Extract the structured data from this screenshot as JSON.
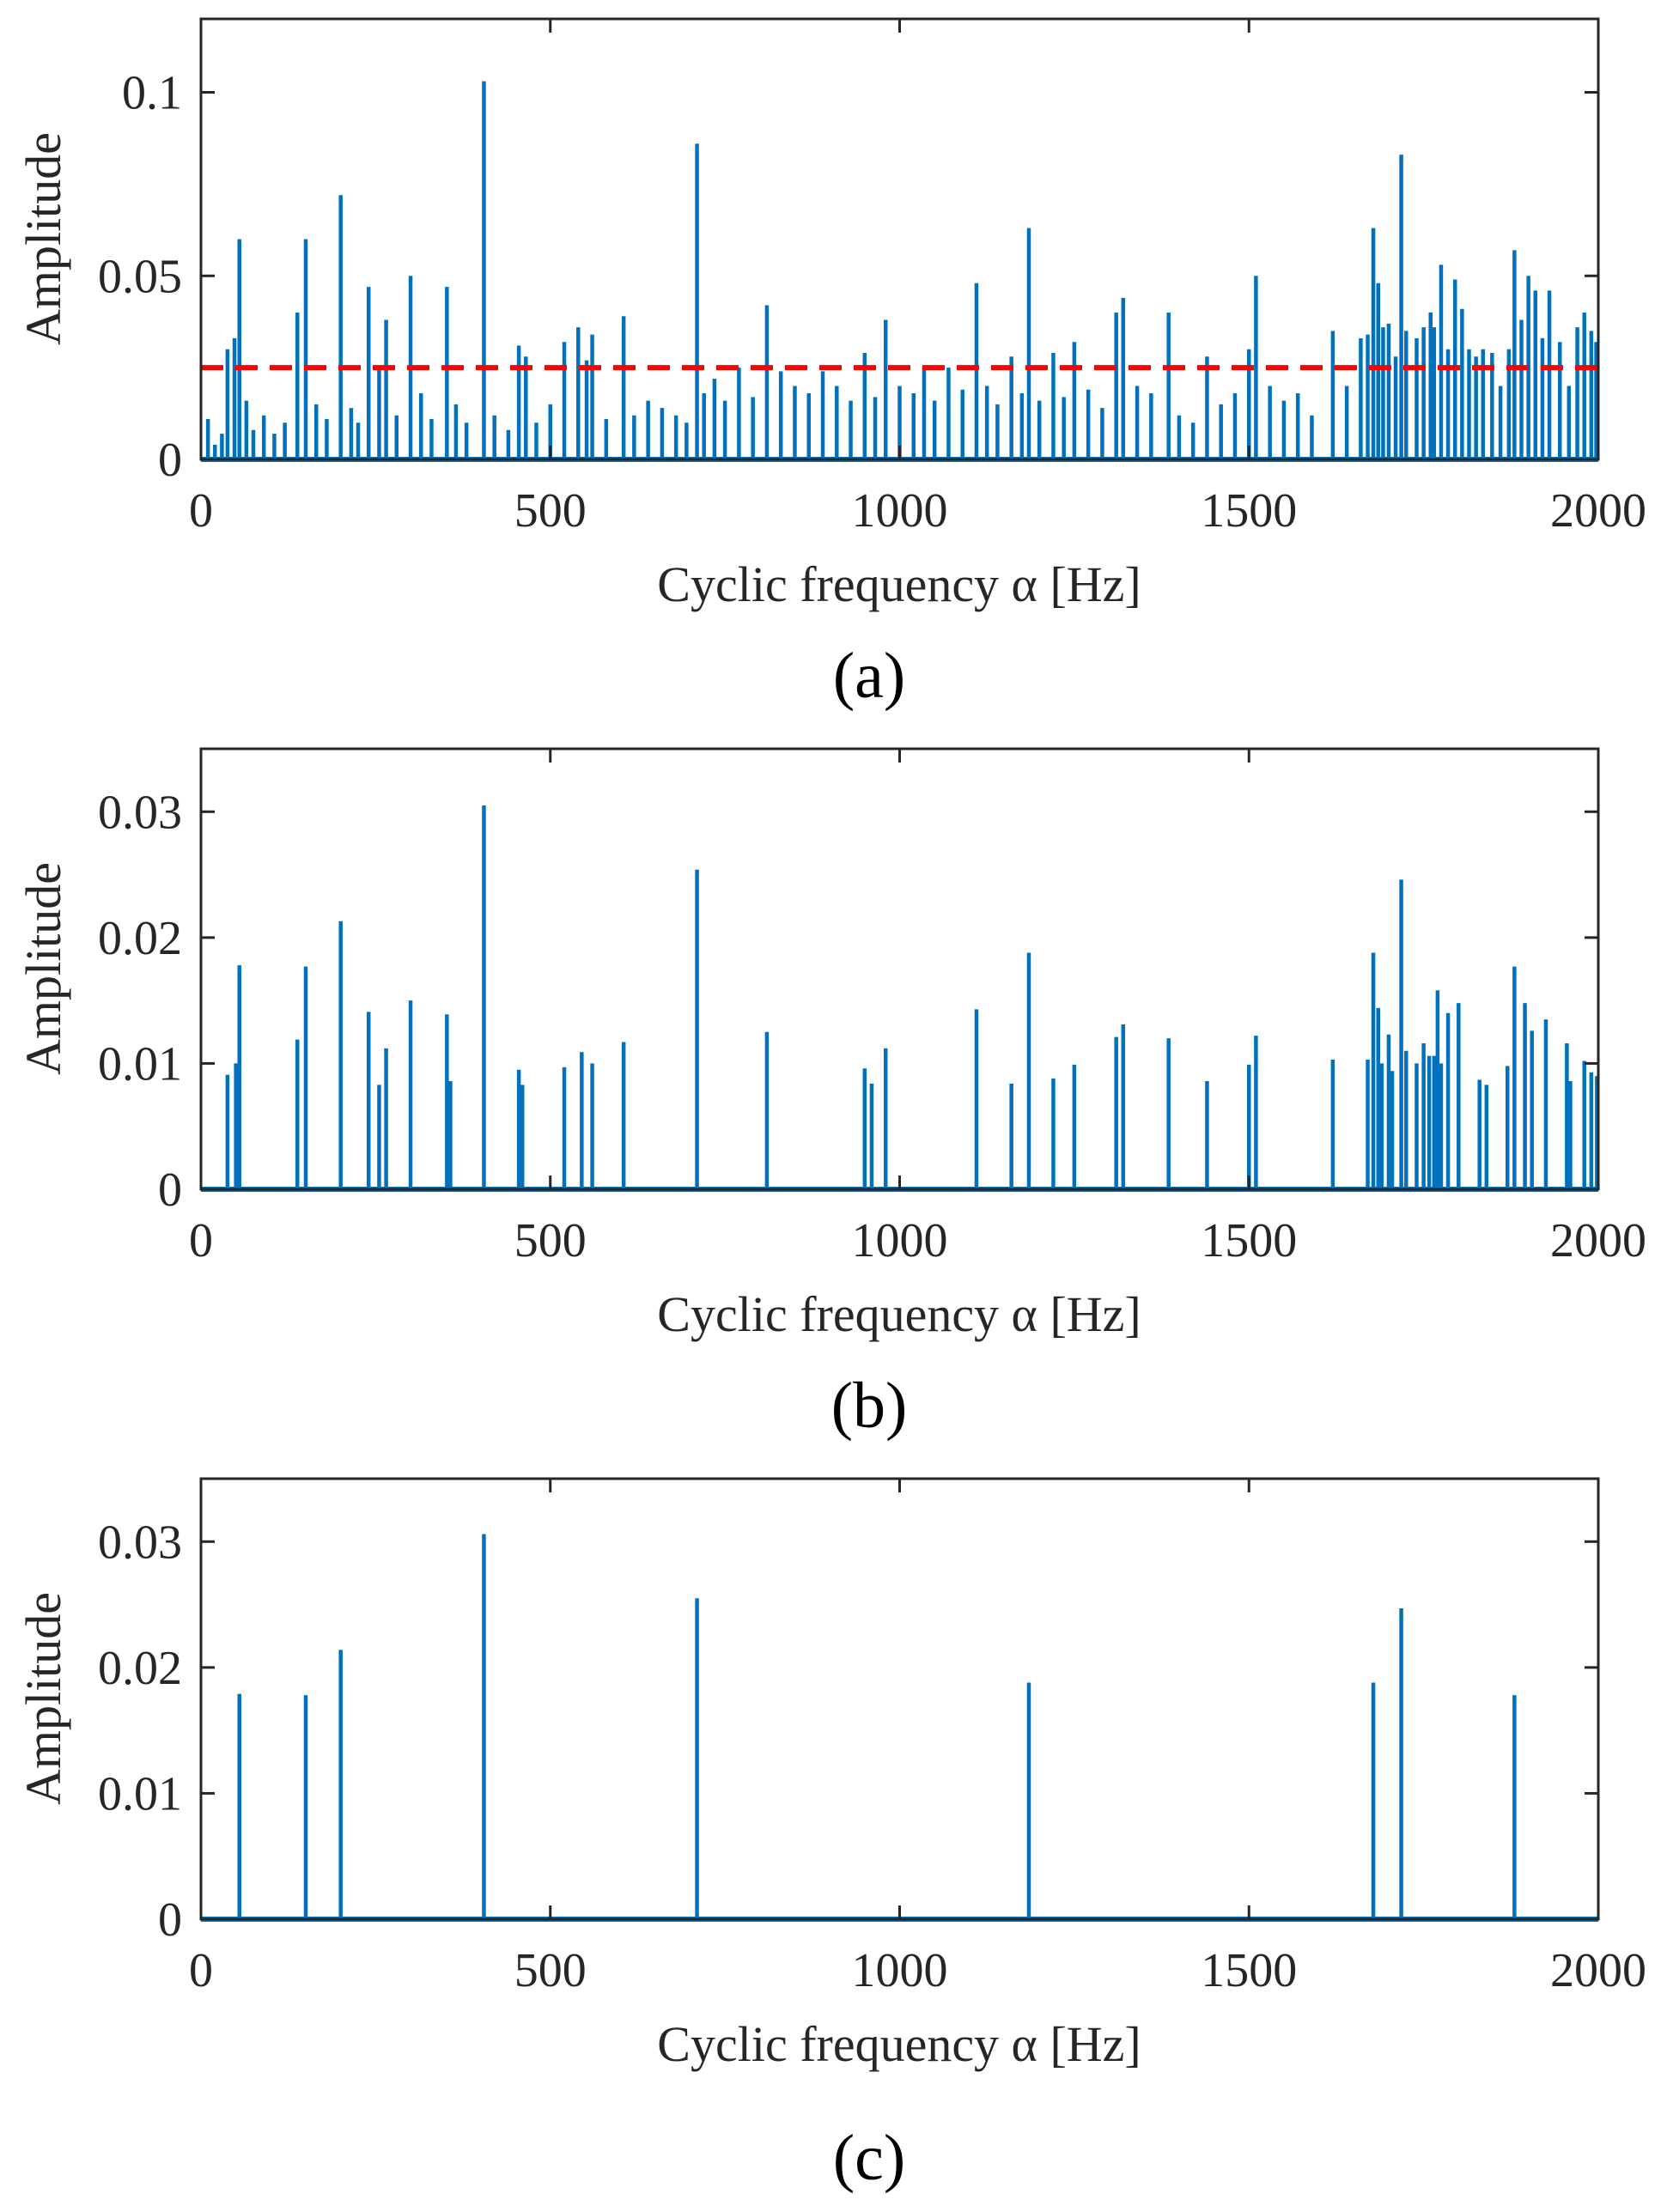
{
  "colors": {
    "series": "#0072BD",
    "threshold": "#FF0000",
    "axis": "#262626"
  },
  "chart_data": [
    {
      "id": "a",
      "type": "line",
      "panel_label": "(a)",
      "title": "",
      "xlabel": "Cyclic frequency α [Hz]",
      "ylabel": "Amplitude",
      "xlim": [
        0,
        2000
      ],
      "ylim": [
        0,
        0.12
      ],
      "xticks": [
        0,
        500,
        1000,
        1500,
        2000
      ],
      "xtick_labels": [
        "0",
        "500",
        "1000",
        "1500",
        "2000"
      ],
      "yticks": [
        0,
        0.05,
        0.1
      ],
      "ytick_labels": [
        "0",
        "0.05",
        "0.1"
      ],
      "grid": false,
      "threshold": 0.025,
      "peaks": [
        [
          10,
          0.011
        ],
        [
          20,
          0.004
        ],
        [
          30,
          0.007
        ],
        [
          38,
          0.03
        ],
        [
          48,
          0.033
        ],
        [
          55,
          0.06
        ],
        [
          65,
          0.016
        ],
        [
          75,
          0.008
        ],
        [
          90,
          0.012
        ],
        [
          105,
          0.007
        ],
        [
          120,
          0.01
        ],
        [
          138,
          0.04
        ],
        [
          150,
          0.06
        ],
        [
          165,
          0.015
        ],
        [
          180,
          0.011
        ],
        [
          200,
          0.072
        ],
        [
          215,
          0.014
        ],
        [
          225,
          0.01
        ],
        [
          240,
          0.047
        ],
        [
          255,
          0.025
        ],
        [
          265,
          0.038
        ],
        [
          280,
          0.012
        ],
        [
          300,
          0.05
        ],
        [
          315,
          0.018
        ],
        [
          330,
          0.011
        ],
        [
          352,
          0.047
        ],
        [
          365,
          0.015
        ],
        [
          380,
          0.01
        ],
        [
          405,
          0.103
        ],
        [
          420,
          0.012
        ],
        [
          440,
          0.008
        ],
        [
          455,
          0.031
        ],
        [
          465,
          0.028
        ],
        [
          480,
          0.01
        ],
        [
          500,
          0.015
        ],
        [
          520,
          0.032
        ],
        [
          540,
          0.036
        ],
        [
          552,
          0.027
        ],
        [
          560,
          0.034
        ],
        [
          580,
          0.011
        ],
        [
          605,
          0.039
        ],
        [
          620,
          0.012
        ],
        [
          640,
          0.016
        ],
        [
          660,
          0.014
        ],
        [
          680,
          0.012
        ],
        [
          695,
          0.01
        ],
        [
          710,
          0.086
        ],
        [
          720,
          0.018
        ],
        [
          735,
          0.022
        ],
        [
          750,
          0.016
        ],
        [
          770,
          0.025
        ],
        [
          790,
          0.017
        ],
        [
          810,
          0.042
        ],
        [
          830,
          0.024
        ],
        [
          850,
          0.02
        ],
        [
          870,
          0.018
        ],
        [
          890,
          0.024
        ],
        [
          910,
          0.02
        ],
        [
          930,
          0.016
        ],
        [
          950,
          0.029
        ],
        [
          965,
          0.017
        ],
        [
          980,
          0.038
        ],
        [
          1000,
          0.02
        ],
        [
          1020,
          0.018
        ],
        [
          1035,
          0.025
        ],
        [
          1050,
          0.016
        ],
        [
          1070,
          0.025
        ],
        [
          1090,
          0.019
        ],
        [
          1110,
          0.048
        ],
        [
          1125,
          0.02
        ],
        [
          1140,
          0.015
        ],
        [
          1160,
          0.028
        ],
        [
          1175,
          0.018
        ],
        [
          1185,
          0.063
        ],
        [
          1200,
          0.016
        ],
        [
          1220,
          0.029
        ],
        [
          1235,
          0.017
        ],
        [
          1250,
          0.032
        ],
        [
          1270,
          0.019
        ],
        [
          1290,
          0.014
        ],
        [
          1310,
          0.04
        ],
        [
          1320,
          0.044
        ],
        [
          1340,
          0.02
        ],
        [
          1360,
          0.018
        ],
        [
          1385,
          0.04
        ],
        [
          1400,
          0.012
        ],
        [
          1420,
          0.01
        ],
        [
          1440,
          0.028
        ],
        [
          1460,
          0.015
        ],
        [
          1480,
          0.018
        ],
        [
          1500,
          0.03
        ],
        [
          1510,
          0.05
        ],
        [
          1530,
          0.02
        ],
        [
          1550,
          0.016
        ],
        [
          1570,
          0.018
        ],
        [
          1590,
          0.012
        ],
        [
          1620,
          0.035
        ],
        [
          1640,
          0.02
        ],
        [
          1660,
          0.033
        ],
        [
          1670,
          0.034
        ],
        [
          1678,
          0.063
        ],
        [
          1685,
          0.048
        ],
        [
          1692,
          0.036
        ],
        [
          1700,
          0.037
        ],
        [
          1710,
          0.028
        ],
        [
          1718,
          0.083
        ],
        [
          1725,
          0.035
        ],
        [
          1740,
          0.033
        ],
        [
          1750,
          0.036
        ],
        [
          1760,
          0.04
        ],
        [
          1765,
          0.036
        ],
        [
          1775,
          0.053
        ],
        [
          1785,
          0.03
        ],
        [
          1795,
          0.049
        ],
        [
          1805,
          0.041
        ],
        [
          1815,
          0.03
        ],
        [
          1825,
          0.028
        ],
        [
          1835,
          0.03
        ],
        [
          1848,
          0.029
        ],
        [
          1860,
          0.02
        ],
        [
          1872,
          0.03
        ],
        [
          1880,
          0.057
        ],
        [
          1890,
          0.038
        ],
        [
          1900,
          0.05
        ],
        [
          1910,
          0.046
        ],
        [
          1920,
          0.033
        ],
        [
          1930,
          0.046
        ],
        [
          1945,
          0.032
        ],
        [
          1958,
          0.02
        ],
        [
          1970,
          0.036
        ],
        [
          1980,
          0.04
        ],
        [
          1990,
          0.035
        ],
        [
          1997,
          0.032
        ]
      ]
    },
    {
      "id": "b",
      "type": "line",
      "panel_label": "(b)",
      "title": "",
      "xlabel": "Cyclic frequency α [Hz]",
      "ylabel": "Amplitude",
      "xlim": [
        0,
        2000
      ],
      "ylim": [
        0,
        0.035
      ],
      "xticks": [
        0,
        500,
        1000,
        1500,
        2000
      ],
      "xtick_labels": [
        "0",
        "500",
        "1000",
        "1500",
        "2000"
      ],
      "yticks": [
        0,
        0.01,
        0.02,
        0.03
      ],
      "ytick_labels": [
        "0",
        "0.01",
        "0.02",
        "0.03"
      ],
      "grid": false,
      "peaks": [
        [
          38,
          0.0091
        ],
        [
          50,
          0.01
        ],
        [
          55,
          0.0178
        ],
        [
          138,
          0.0119
        ],
        [
          150,
          0.0177
        ],
        [
          200,
          0.0213
        ],
        [
          240,
          0.0141
        ],
        [
          255,
          0.0083
        ],
        [
          265,
          0.0112
        ],
        [
          300,
          0.015
        ],
        [
          352,
          0.0139
        ],
        [
          357,
          0.0086
        ],
        [
          405,
          0.0305
        ],
        [
          455,
          0.0095
        ],
        [
          460,
          0.0083
        ],
        [
          520,
          0.0097
        ],
        [
          545,
          0.0109
        ],
        [
          560,
          0.01
        ],
        [
          605,
          0.0117
        ],
        [
          710,
          0.0254
        ],
        [
          810,
          0.0125
        ],
        [
          950,
          0.0096
        ],
        [
          960,
          0.0084
        ],
        [
          980,
          0.0112
        ],
        [
          1110,
          0.0143
        ],
        [
          1160,
          0.0084
        ],
        [
          1185,
          0.0188
        ],
        [
          1220,
          0.0088
        ],
        [
          1250,
          0.0099
        ],
        [
          1310,
          0.0121
        ],
        [
          1320,
          0.0131
        ],
        [
          1385,
          0.012
        ],
        [
          1440,
          0.0086
        ],
        [
          1500,
          0.0099
        ],
        [
          1510,
          0.0122
        ],
        [
          1620,
          0.0103
        ],
        [
          1670,
          0.0103
        ],
        [
          1678,
          0.0188
        ],
        [
          1685,
          0.0144
        ],
        [
          1690,
          0.01
        ],
        [
          1700,
          0.0123
        ],
        [
          1705,
          0.0094
        ],
        [
          1718,
          0.0246
        ],
        [
          1725,
          0.011
        ],
        [
          1740,
          0.01
        ],
        [
          1750,
          0.0116
        ],
        [
          1758,
          0.0106
        ],
        [
          1765,
          0.0106
        ],
        [
          1770,
          0.0158
        ],
        [
          1775,
          0.01
        ],
        [
          1785,
          0.014
        ],
        [
          1800,
          0.0148
        ],
        [
          1830,
          0.0087
        ],
        [
          1840,
          0.0083
        ],
        [
          1870,
          0.0098
        ],
        [
          1880,
          0.0177
        ],
        [
          1895,
          0.0148
        ],
        [
          1905,
          0.0126
        ],
        [
          1925,
          0.0135
        ],
        [
          1955,
          0.0116
        ],
        [
          1960,
          0.0086
        ],
        [
          1980,
          0.0102
        ],
        [
          1990,
          0.0093
        ],
        [
          1998,
          0.009
        ]
      ]
    },
    {
      "id": "c",
      "type": "line",
      "panel_label": "(c)",
      "title": "",
      "xlabel": "Cyclic frequency α [Hz]",
      "ylabel": "Amplitude",
      "xlim": [
        0,
        2000
      ],
      "ylim": [
        0,
        0.035
      ],
      "xticks": [
        0,
        500,
        1000,
        1500,
        2000
      ],
      "xtick_labels": [
        "0",
        "500",
        "1000",
        "1500",
        "2000"
      ],
      "yticks": [
        0,
        0.01,
        0.02,
        0.03
      ],
      "ytick_labels": [
        "0",
        "0.01",
        "0.02",
        "0.03"
      ],
      "grid": false,
      "peaks": [
        [
          55,
          0.0179
        ],
        [
          150,
          0.0178
        ],
        [
          200,
          0.0214
        ],
        [
          405,
          0.0306
        ],
        [
          710,
          0.0255
        ],
        [
          1185,
          0.0188
        ],
        [
          1678,
          0.0188
        ],
        [
          1718,
          0.0247
        ],
        [
          1880,
          0.0178
        ]
      ]
    }
  ]
}
